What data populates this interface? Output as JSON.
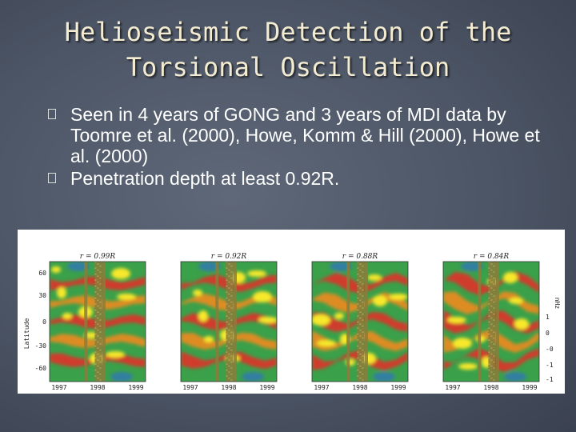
{
  "title": {
    "line1": "Helioseismic Detection of the",
    "line2": "Torsional Oscillation"
  },
  "bullets": [
    "Seen in 4 years of GONG and 3 years of MDI data by Toomre et al. (2000), Howe, Komm & Hill (2000), Howe et al. (2000)",
    "Penetration depth at least 0.92R."
  ],
  "figure": {
    "ylabel": "Latitude",
    "yticks": [
      "60",
      "30",
      "0",
      "-30",
      "-60"
    ],
    "right_label": "nHz",
    "right_ticks": [
      "1",
      "0",
      "-0",
      "-1",
      "-1"
    ],
    "panels": [
      {
        "title": "r = 0.99R",
        "years": [
          "1997",
          "1998",
          "1999"
        ]
      },
      {
        "title": "r = 0.92R",
        "years": [
          "1997",
          "1998",
          "1999"
        ]
      },
      {
        "title": "r = 0.88R",
        "years": [
          "1997",
          "1998",
          "1999"
        ]
      },
      {
        "title": "r = 0.84R",
        "years": [
          "1997",
          "1998",
          "1999"
        ]
      }
    ],
    "colors": {
      "red": "#e0302a",
      "orange": "#f08a1e",
      "yellow": "#f7e82a",
      "green": "#3aa04a",
      "olive": "#8b7d3a",
      "blue": "#2f6fc7"
    }
  }
}
